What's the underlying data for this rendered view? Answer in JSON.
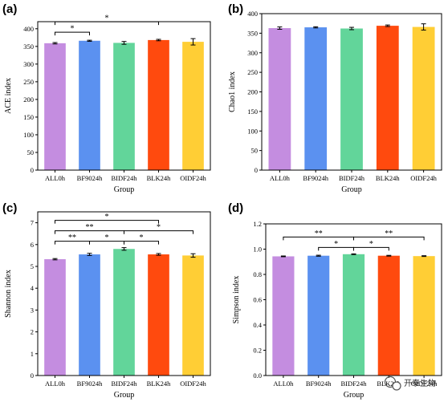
{
  "colors": [
    "#C48DE0",
    "#5B91F0",
    "#62D59A",
    "#FF4A0E",
    "#FFCE35"
  ],
  "watermark": {
    "text": "开泰生物",
    "icon": "wechat-icon"
  },
  "chart_data": [
    {
      "type": "bar",
      "panel_label": "(a)",
      "categories": [
        "ALL0h",
        "BF9024h",
        "BIDF24h",
        "BLK24h",
        "OIDF24h"
      ],
      "values": [
        359,
        366,
        360,
        368,
        363
      ],
      "errors": [
        2,
        1.5,
        4,
        2,
        9
      ],
      "xlabel": "Group",
      "ylabel": "ACE index",
      "ylim": [
        0,
        420
      ],
      "yticks": [
        0,
        50,
        100,
        150,
        200,
        250,
        300,
        350,
        400
      ],
      "significance": [
        {
          "from": 0,
          "to": 3,
          "level": 1,
          "label": "*"
        },
        {
          "from": 0,
          "to": 1,
          "level": 0,
          "label": "*"
        }
      ]
    },
    {
      "type": "bar",
      "panel_label": "(b)",
      "categories": [
        "ALL0h",
        "BF9024h",
        "BIDF24h",
        "BLK24h",
        "OIDF24h"
      ],
      "values": [
        363,
        365,
        362,
        369,
        366
      ],
      "errors": [
        3,
        1.5,
        3,
        2,
        8
      ],
      "xlabel": "Group",
      "ylabel": "Chao1 index",
      "ylim": [
        0,
        400
      ],
      "yticks": [
        0,
        50,
        100,
        150,
        200,
        250,
        300,
        350,
        400
      ],
      "significance": []
    },
    {
      "type": "bar",
      "panel_label": "(c)",
      "categories": [
        "ALL0h",
        "BF9024h",
        "BIDF24h",
        "BLK24h",
        "OIDF24h"
      ],
      "values": [
        5.33,
        5.55,
        5.8,
        5.55,
        5.5
      ],
      "errors": [
        0.03,
        0.05,
        0.06,
        0.04,
        0.08
      ],
      "xlabel": "Group",
      "ylabel": "Shannon index",
      "ylim": [
        0,
        7.5
      ],
      "yticks": [
        0,
        1,
        2,
        3,
        4,
        5,
        6,
        7
      ],
      "significance": [
        {
          "from": 0,
          "to": 3,
          "level": 2,
          "label": "*"
        },
        {
          "from": 0,
          "to": 2,
          "level": 1,
          "label": "**"
        },
        {
          "from": 2,
          "to": 4,
          "level": 1,
          "label": "*"
        },
        {
          "from": 0,
          "to": 1,
          "level": 0,
          "label": "**"
        },
        {
          "from": 1,
          "to": 2,
          "level": 0,
          "label": "*"
        },
        {
          "from": 2,
          "to": 3,
          "level": 0,
          "label": "*"
        }
      ]
    },
    {
      "type": "bar",
      "panel_label": "(d)",
      "categories": [
        "ALL0h",
        "BF9024h",
        "BIDF24h",
        "BLK24h",
        "OIDF24h"
      ],
      "values": [
        0.943,
        0.948,
        0.96,
        0.948,
        0.945
      ],
      "errors": [
        0.003,
        0.004,
        0.003,
        0.003,
        0.003
      ],
      "xlabel": "Group",
      "ylabel": "Simpson index",
      "ylim": [
        0,
        1.2
      ],
      "yticks": [
        0.0,
        0.2,
        0.4,
        0.6,
        0.8,
        1.0,
        1.2
      ],
      "significance": [
        {
          "from": 0,
          "to": 2,
          "level": 1,
          "label": "**"
        },
        {
          "from": 2,
          "to": 4,
          "level": 1,
          "label": "**"
        },
        {
          "from": 1,
          "to": 2,
          "level": 0,
          "label": "*"
        },
        {
          "from": 2,
          "to": 3,
          "level": 0,
          "label": "*"
        }
      ]
    }
  ]
}
